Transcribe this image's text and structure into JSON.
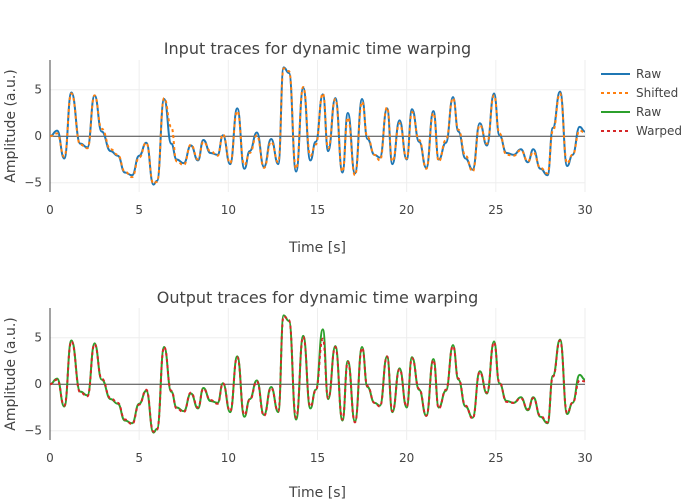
{
  "chart_data": [
    {
      "type": "line",
      "title": "Input traces for dynamic time warping",
      "xlabel": "Time [s]",
      "ylabel": "Amplitude (a.u.)",
      "xlim": [
        0,
        30
      ],
      "ylim": [
        -6,
        8.2
      ],
      "xticks": [
        0,
        5,
        10,
        15,
        20,
        25,
        30
      ],
      "yticks": [
        -5,
        0,
        5
      ],
      "grid": true,
      "legend": "right",
      "series": [
        {
          "name": "Raw",
          "color": "#1f77b4",
          "dash": "solid",
          "x": [
            0,
            0.4,
            0.8,
            1.2,
            1.7,
            2.1,
            2.5,
            2.9,
            3.4,
            3.8,
            4.2,
            4.6,
            5.0,
            5.4,
            5.8,
            6.0,
            6.4,
            6.8,
            7.1,
            7.5,
            7.9,
            8.3,
            8.6,
            9.0,
            9.4,
            9.7,
            10.1,
            10.5,
            10.9,
            11.2,
            11.6,
            12.0,
            12.4,
            12.8,
            13.1,
            13.4,
            13.8,
            14.2,
            14.6,
            14.9,
            15.3,
            15.6,
            16.0,
            16.4,
            16.7,
            17.1,
            17.5,
            17.8,
            18.2,
            18.5,
            18.9,
            19.2,
            19.6,
            20.0,
            20.3,
            20.7,
            21.1,
            21.5,
            21.8,
            22.2,
            22.6,
            22.9,
            23.3,
            23.7,
            24.1,
            24.5,
            24.9,
            25.2,
            25.6,
            26.0,
            26.4,
            26.8,
            27.1,
            27.5,
            27.9,
            28.2,
            28.6,
            29.0,
            29.3,
            29.7,
            30
          ],
          "y": [
            0,
            0.6,
            -2.4,
            4.7,
            -0.8,
            -1.2,
            4.4,
            0.5,
            -1.6,
            -2.1,
            -3.9,
            -4.2,
            -2.1,
            -0.7,
            -5.2,
            -4.8,
            4.0,
            -0.8,
            -2.5,
            -2.9,
            -1.0,
            -2.6,
            -0.4,
            -1.8,
            -2.0,
            0.1,
            -3.0,
            3.0,
            -3.5,
            -1.6,
            0.4,
            -3.3,
            -0.3,
            -3.0,
            7.4,
            6.8,
            -3.8,
            5.2,
            -2.6,
            -0.6,
            4.5,
            -1.6,
            4.1,
            -3.9,
            2.5,
            -4.0,
            4.0,
            -0.3,
            -2.0,
            -2.3,
            3.0,
            -3.0,
            1.7,
            -2.5,
            2.9,
            -0.6,
            -3.4,
            2.7,
            -2.5,
            -0.7,
            4.2,
            0.5,
            -2.4,
            -3.6,
            1.4,
            -1.0,
            4.6,
            0.1,
            -1.8,
            -2.0,
            -1.4,
            -2.8,
            -1.4,
            -3.5,
            -4.2,
            0.9,
            4.8,
            -3.2,
            -2.0,
            1.0,
            0.5
          ]
        },
        {
          "name": "Shifted",
          "color": "#ff7f0e",
          "dash": "dot",
          "x": [
            0,
            0.4,
            0.8,
            1.2,
            1.7,
            2.1,
            2.5,
            2.9,
            3.4,
            3.8,
            4.2,
            4.6,
            5.0,
            5.4,
            5.8,
            6.0,
            6.4,
            6.8,
            7.1,
            7.5,
            7.9,
            8.3,
            8.6,
            9.0,
            9.4,
            9.7,
            10.1,
            10.5,
            10.9,
            11.2,
            11.6,
            12.0,
            12.4,
            12.8,
            13.1,
            13.4,
            13.8,
            14.2,
            14.6,
            14.9,
            15.3,
            15.6,
            16.0,
            16.4,
            16.7,
            17.1,
            17.5,
            17.8,
            18.2,
            18.5,
            18.9,
            19.2,
            19.6,
            20.0,
            20.3,
            20.7,
            21.1,
            21.5,
            21.8,
            22.2,
            22.6,
            22.9,
            23.3,
            23.7,
            24.1,
            24.5,
            24.9,
            25.2,
            25.6,
            26.0,
            26.4,
            26.8,
            27.1,
            27.5,
            27.9,
            28.2,
            28.6,
            29.0,
            29.3,
            29.7,
            30
          ],
          "y": [
            0,
            0.3,
            -2.2,
            4.6,
            -0.9,
            -1.3,
            4.4,
            0.8,
            -1.4,
            -2.0,
            -3.8,
            -4.4,
            -2.3,
            -0.7,
            -5.1,
            -4.9,
            4.1,
            1.0,
            -2.7,
            -3.1,
            -0.9,
            -2.5,
            -0.6,
            -1.6,
            -2.1,
            0.2,
            -2.9,
            2.7,
            -3.1,
            -1.8,
            0.1,
            -3.4,
            -0.6,
            -2.8,
            7.3,
            7.0,
            -3.5,
            5.3,
            -2.1,
            -0.9,
            4.6,
            -1.3,
            4.0,
            -3.8,
            2.0,
            -4.2,
            3.7,
            -0.1,
            -2.0,
            -2.6,
            3.1,
            -2.7,
            1.4,
            -2.4,
            2.6,
            -0.4,
            -3.5,
            2.5,
            -2.7,
            -0.4,
            4.1,
            0.7,
            -2.1,
            -3.8,
            1.2,
            -0.8,
            4.4,
            0.3,
            -2.0,
            -2.1,
            -1.5,
            -2.7,
            -1.7,
            -3.4,
            -4.0,
            0.6,
            4.6,
            -2.9,
            -2.0,
            0.6,
            0.4
          ]
        }
      ]
    },
    {
      "type": "line",
      "title": "Output traces for dynamic time warping",
      "xlabel": "Time [s]",
      "ylabel": "Amplitude (a.u.)",
      "xlim": [
        0,
        30
      ],
      "ylim": [
        -6,
        8.2
      ],
      "xticks": [
        0,
        5,
        10,
        15,
        20,
        25,
        30
      ],
      "yticks": [
        -5,
        0,
        5
      ],
      "grid": true,
      "legend": "right",
      "series": [
        {
          "name": "Raw",
          "color": "#2ca02c",
          "dash": "solid",
          "x": [
            0,
            0.4,
            0.8,
            1.2,
            1.7,
            2.1,
            2.5,
            2.9,
            3.4,
            3.8,
            4.2,
            4.6,
            5.0,
            5.4,
            5.8,
            6.0,
            6.4,
            6.8,
            7.1,
            7.5,
            7.9,
            8.3,
            8.6,
            9.0,
            9.4,
            9.7,
            10.1,
            10.5,
            10.9,
            11.2,
            11.6,
            12.0,
            12.4,
            12.8,
            13.1,
            13.4,
            13.8,
            14.2,
            14.6,
            14.9,
            15.3,
            15.6,
            16.0,
            16.4,
            16.7,
            17.1,
            17.5,
            17.8,
            18.2,
            18.5,
            18.9,
            19.2,
            19.6,
            20.0,
            20.3,
            20.7,
            21.1,
            21.5,
            21.8,
            22.2,
            22.6,
            22.9,
            23.3,
            23.7,
            24.1,
            24.5,
            24.9,
            25.2,
            25.6,
            26.0,
            26.4,
            26.8,
            27.1,
            27.5,
            27.9,
            28.2,
            28.6,
            29.0,
            29.3,
            29.7,
            30
          ],
          "y": [
            0,
            0.6,
            -2.4,
            4.7,
            -0.8,
            -1.2,
            4.4,
            0.5,
            -1.6,
            -2.1,
            -3.9,
            -4.2,
            -2.1,
            -0.7,
            -5.2,
            -4.8,
            4.0,
            -0.8,
            -2.5,
            -2.9,
            -1.0,
            -2.6,
            -0.4,
            -1.8,
            -2.0,
            0.1,
            -3.0,
            3.0,
            -3.5,
            -1.6,
            0.4,
            -3.3,
            -0.3,
            -3.0,
            7.4,
            6.8,
            -3.8,
            5.2,
            -2.6,
            -0.6,
            5.9,
            -1.6,
            4.1,
            -3.9,
            2.5,
            -4.0,
            4.0,
            -0.3,
            -2.0,
            -2.3,
            3.0,
            -3.0,
            1.7,
            -2.5,
            2.9,
            -0.6,
            -3.4,
            2.7,
            -2.5,
            -0.7,
            4.2,
            0.5,
            -2.4,
            -3.6,
            1.4,
            -1.0,
            4.6,
            0.1,
            -1.8,
            -2.0,
            -1.4,
            -2.8,
            -1.4,
            -3.5,
            -4.2,
            0.9,
            4.8,
            -3.2,
            -2.0,
            1.0,
            0.5
          ]
        },
        {
          "name": "Warped",
          "color": "#d62728",
          "dash": "dot",
          "x": [
            0,
            0.4,
            0.8,
            1.2,
            1.7,
            2.1,
            2.5,
            2.9,
            3.4,
            3.8,
            4.2,
            4.6,
            5.0,
            5.4,
            5.8,
            6.0,
            6.4,
            6.8,
            7.1,
            7.5,
            7.9,
            8.3,
            8.6,
            9.0,
            9.4,
            9.7,
            10.1,
            10.5,
            10.9,
            11.2,
            11.6,
            12.0,
            12.4,
            12.8,
            13.1,
            13.4,
            13.8,
            14.2,
            14.6,
            14.9,
            15.3,
            15.6,
            16.0,
            16.4,
            16.7,
            17.1,
            17.5,
            17.8,
            18.2,
            18.5,
            18.9,
            19.2,
            19.6,
            20.0,
            20.3,
            20.7,
            21.1,
            21.5,
            21.8,
            22.2,
            22.6,
            22.9,
            23.3,
            23.7,
            24.1,
            24.5,
            24.9,
            25.2,
            25.6,
            26.0,
            26.4,
            26.8,
            27.1,
            27.5,
            27.9,
            28.2,
            28.6,
            29.0,
            29.3,
            29.7,
            30
          ],
          "y": [
            0,
            0.5,
            -2.3,
            4.6,
            -0.9,
            -1.3,
            4.3,
            0.6,
            -1.5,
            -2.0,
            -3.8,
            -4.3,
            -2.2,
            -0.6,
            -5.1,
            -4.9,
            4.0,
            -0.7,
            -2.6,
            -3.0,
            -0.9,
            -2.5,
            -0.5,
            -1.7,
            -2.1,
            0.1,
            -2.9,
            2.9,
            -3.3,
            -1.7,
            0.3,
            -3.4,
            -0.4,
            -2.9,
            7.3,
            6.9,
            -3.6,
            5.1,
            -2.4,
            -0.7,
            4.9,
            -1.5,
            4.0,
            -3.8,
            2.4,
            -4.1,
            3.9,
            -0.2,
            -2.0,
            -2.4,
            3.0,
            -2.9,
            1.6,
            -2.4,
            2.8,
            -0.5,
            -3.4,
            2.6,
            -2.6,
            -0.6,
            4.1,
            0.6,
            -2.3,
            -3.7,
            1.3,
            -0.9,
            4.5,
            0.2,
            -1.9,
            -2.0,
            -1.5,
            -2.7,
            -1.5,
            -3.4,
            -4.1,
            0.8,
            4.7,
            -3.1,
            -2.0,
            0.4,
            0.3
          ]
        }
      ]
    }
  ]
}
